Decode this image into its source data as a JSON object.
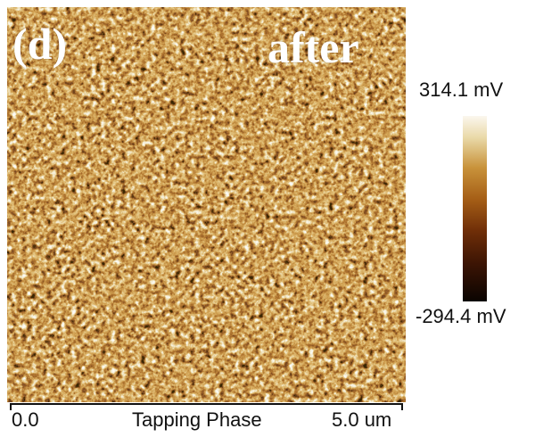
{
  "panel": {
    "label": "(d)",
    "condition": "after"
  },
  "image": {
    "colormap": [
      "#0a0401",
      "#3b1404",
      "#6f2e08",
      "#a55e16",
      "#c8923a",
      "#e9d8a6",
      "#fbf7ee"
    ],
    "base_color": "#7a3c0c"
  },
  "colorbar": {
    "max_label": "314.1 mV",
    "min_label": "-294.4 mV"
  },
  "axis": {
    "start_label": "0.0",
    "title": "Tapping Phase",
    "end_label": "5.0 um"
  }
}
